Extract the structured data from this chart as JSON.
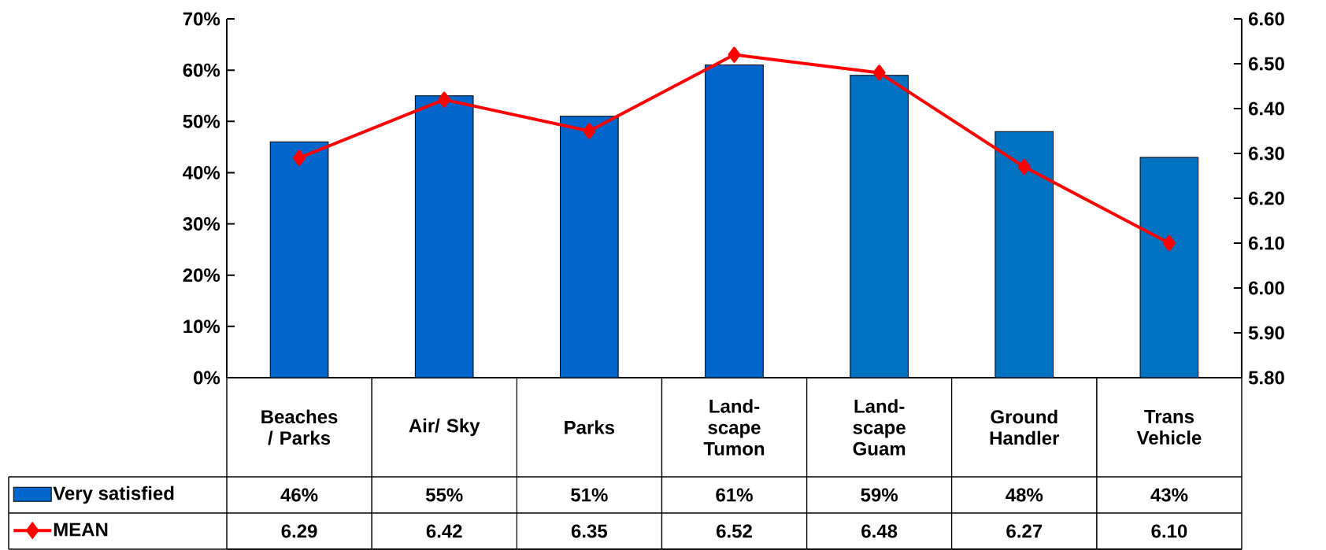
{
  "chart_data": {
    "type": "bar",
    "categories": [
      "Beaches / Parks",
      "Air/ Sky",
      "Parks",
      "Land-scape Tumon",
      "Land-scape Guam",
      "Ground Handler",
      "Trans Vehicle"
    ],
    "series": [
      {
        "name": "Very satisfied",
        "color": "#0066cc",
        "colors": [
          "#0066cc",
          "#0066cc",
          "#0066cc",
          "#0066cc",
          "#0070c0",
          "#0070c0",
          "#0070c0"
        ],
        "values": [
          46,
          55,
          51,
          61,
          59,
          48,
          43
        ],
        "value_labels": [
          "46%",
          "55%",
          "51%",
          "61%",
          "59%",
          "48%",
          "43%"
        ]
      },
      {
        "name": "MEAN",
        "type": "line",
        "axis": "y2",
        "color": "#ff0000",
        "marker": "diamond",
        "line_style": "solid",
        "values": [
          6.29,
          6.42,
          6.35,
          6.52,
          6.48,
          6.27,
          6.1
        ],
        "value_labels": [
          "6.29",
          "6.42",
          "6.35",
          "6.52",
          "6.48",
          "6.27",
          "6.10"
        ]
      }
    ],
    "ylim": [
      0,
      70
    ],
    "yticks": [
      {
        "value": 0,
        "label": "0%"
      },
      {
        "value": 10,
        "label": "10%"
      },
      {
        "value": 20,
        "label": "20%"
      },
      {
        "value": 30,
        "label": "30%"
      },
      {
        "value": 40,
        "label": "40%"
      },
      {
        "value": 50,
        "label": "50%"
      },
      {
        "value": 60,
        "label": "60%"
      },
      {
        "value": 70,
        "label": "70%"
      }
    ],
    "y2lim": [
      5.8,
      6.6
    ],
    "y2ticks": [
      {
        "value": 5.8,
        "label": "5.80"
      },
      {
        "value": 5.9,
        "label": "5.90"
      },
      {
        "value": 6.0,
        "label": "6.00"
      },
      {
        "value": 6.1,
        "label": "6.10"
      },
      {
        "value": 6.2,
        "label": "6.20"
      },
      {
        "value": 6.3,
        "label": "6.30"
      },
      {
        "value": 6.4,
        "label": "6.40"
      },
      {
        "value": 6.5,
        "label": "6.50"
      },
      {
        "value": 6.6,
        "label": "6.60"
      }
    ],
    "grid": false,
    "legend": "bottom"
  }
}
